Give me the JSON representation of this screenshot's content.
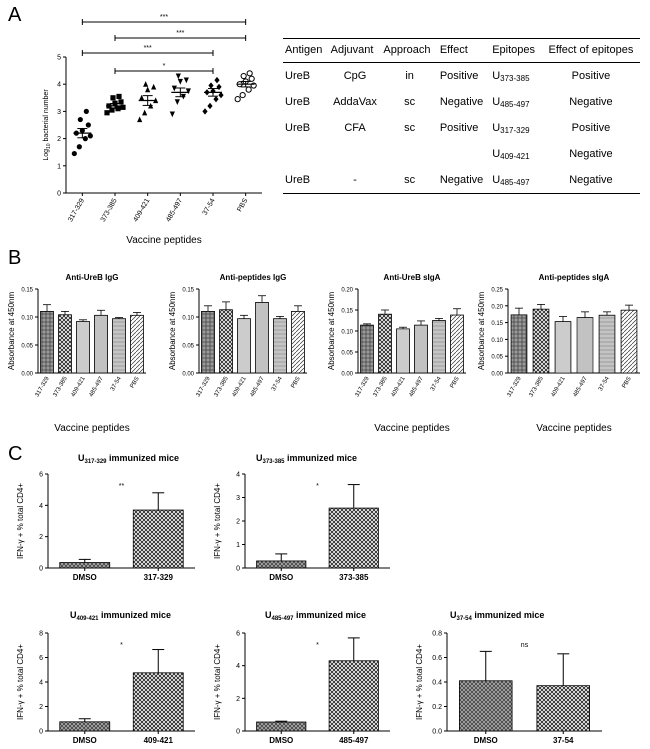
{
  "panel_labels": {
    "a": "A",
    "b": "B",
    "c": "C"
  },
  "table": {
    "headers": [
      "Antigen",
      "Adjuvant",
      "Approach",
      "Effect",
      "Epitopes",
      "Effect of epitopes"
    ],
    "rows": [
      {
        "antigen": "UreB",
        "adjuvant": "CpG",
        "approach": "in",
        "effect": "Positive",
        "epitope_prefix": "U",
        "epitope_sub": "373-385",
        "epitope_effect": "Positive"
      },
      {
        "antigen": "UreB",
        "adjuvant": "AddaVax",
        "approach": "sc",
        "effect": "Negative",
        "epitope_prefix": "U",
        "epitope_sub": "485-497",
        "epitope_effect": "Negative"
      },
      {
        "antigen": "UreB",
        "adjuvant": "CFA",
        "approach": "sc",
        "effect": "Positive",
        "epitope_prefix": "U",
        "epitope_sub": "317-329",
        "epitope_effect": "Positive"
      },
      {
        "antigen": "",
        "adjuvant": "",
        "approach": "",
        "effect": "",
        "epitope_prefix": "U",
        "epitope_sub": "409-421",
        "epitope_effect": "Negative"
      },
      {
        "antigen": "UreB",
        "adjuvant": "-",
        "approach": "sc",
        "effect": "Negative",
        "epitope_prefix": "U",
        "epitope_sub": "485-497",
        "epitope_effect": "Negative"
      }
    ]
  },
  "chart_data": [
    {
      "id": "A",
      "type": "scatter",
      "title": "",
      "xlabel": "Vaccine peptides",
      "ylabel_main": "Log",
      "ylabel_sub": "10",
      "ylabel_rest": " bacterial number",
      "ylim": [
        0,
        5
      ],
      "yticks": [
        "0",
        "1",
        "2",
        "3",
        "4",
        "5"
      ],
      "categories": [
        "317-329",
        "373-385",
        "409-421",
        "485-497",
        "37-54",
        "PBS"
      ],
      "markers": [
        "circle",
        "square",
        "triangle",
        "triangle-down",
        "diamond",
        "circle-open"
      ],
      "groups": [
        {
          "points": [
            1.45,
            1.7,
            2.0,
            2.1,
            2.2,
            2.3,
            2.5,
            2.7,
            3.0
          ],
          "mean": 2.2,
          "sem": 0.17
        },
        {
          "points": [
            2.95,
            3.05,
            3.1,
            3.15,
            3.2,
            3.3,
            3.35,
            3.5,
            3.55
          ],
          "mean": 3.2,
          "sem": 0.09
        },
        {
          "points": [
            2.7,
            2.95,
            3.2,
            3.4,
            3.5,
            3.8,
            3.9,
            4.0
          ],
          "mean": 3.4,
          "sem": 0.18
        },
        {
          "points": [
            2.9,
            3.35,
            3.55,
            3.75,
            3.85,
            4.1,
            4.15,
            4.3
          ],
          "mean": 3.7,
          "sem": 0.16
        },
        {
          "points": [
            3.0,
            3.2,
            3.45,
            3.6,
            3.7,
            3.75,
            3.9,
            3.95,
            4.15
          ],
          "mean": 3.7,
          "sem": 0.14
        },
        {
          "points": [
            3.45,
            3.6,
            3.8,
            3.95,
            4.0,
            4.1,
            4.2,
            4.3,
            4.4
          ],
          "mean": 4.0,
          "sem": 0.1
        }
      ],
      "significance": [
        {
          "from": "317-329",
          "to": "PBS",
          "label": "***"
        },
        {
          "from": "373-385",
          "to": "PBS",
          "label": "***"
        },
        {
          "from": "317-329",
          "to": "37-54",
          "label": "***"
        },
        {
          "from": "373-385",
          "to": "37-54",
          "label": "*"
        }
      ]
    },
    {
      "id": "B1",
      "type": "bar",
      "title": "Anti-UreB IgG",
      "xlabel": "Vaccine peptides",
      "ylabel": "Absorbance at 450nm",
      "categories": [
        "317-329",
        "373-385",
        "409-421",
        "485-497",
        "37-54",
        "PBS"
      ],
      "values": [
        0.11,
        0.104,
        0.092,
        0.103,
        0.097,
        0.103
      ],
      "errors": [
        0.012,
        0.006,
        0.003,
        0.009,
        0.002,
        0.005
      ],
      "ylim": [
        0,
        0.15
      ],
      "yticks": [
        "0.00",
        "0.05",
        "0.10",
        "0.15"
      ]
    },
    {
      "id": "B2",
      "type": "bar",
      "title": "Anti-peptides IgG",
      "xlabel": "",
      "ylabel": "Absorbance at 450nm",
      "categories": [
        "317-329",
        "373-385",
        "409-421",
        "485-497",
        "37-54",
        "PBS"
      ],
      "values": [
        0.11,
        0.113,
        0.097,
        0.126,
        0.097,
        0.11
      ],
      "errors": [
        0.01,
        0.014,
        0.006,
        0.012,
        0.004,
        0.01
      ],
      "ylim": [
        0,
        0.15
      ],
      "yticks": [
        "0.00",
        "0.05",
        "0.10",
        "0.15"
      ]
    },
    {
      "id": "B3",
      "type": "bar",
      "title": "Anti-UreB sIgA",
      "xlabel": "Vaccine peptides",
      "ylabel": "Absorbance at 450nm",
      "categories": [
        "317-329",
        "373-385",
        "409-421",
        "485-497",
        "37-54",
        "PBS"
      ],
      "values": [
        0.114,
        0.14,
        0.105,
        0.114,
        0.125,
        0.138
      ],
      "errors": [
        0.003,
        0.01,
        0.004,
        0.01,
        0.005,
        0.015
      ],
      "ylim": [
        0,
        0.2
      ],
      "yticks": [
        "0.00",
        "0.05",
        "0.10",
        "0.15",
        "0.20"
      ]
    },
    {
      "id": "B4",
      "type": "bar",
      "title": "Anti-peptides sIgA",
      "xlabel": "Vaccine peptides",
      "ylabel": "Absorbance at 450nm",
      "categories": [
        "317-329",
        "373-385",
        "409-421",
        "485-497",
        "37-54",
        "PBS"
      ],
      "values": [
        0.173,
        0.19,
        0.153,
        0.165,
        0.172,
        0.187
      ],
      "errors": [
        0.02,
        0.014,
        0.015,
        0.017,
        0.01,
        0.015
      ],
      "ylim": [
        0,
        0.25
      ],
      "yticks": [
        "0.00",
        "0.05",
        "0.10",
        "0.15",
        "0.20",
        "0.25"
      ]
    },
    {
      "id": "C1",
      "type": "bar",
      "title_prefix": "U",
      "title_sub": "317-329",
      "title_rest": " immunized mice",
      "ylabel": "IFN-γ + % total CD4+",
      "categories": [
        "DMSO",
        "317-329"
      ],
      "values": [
        0.35,
        3.7
      ],
      "errors": [
        0.2,
        1.1
      ],
      "ylim": [
        0,
        6
      ],
      "yticks": [
        "0",
        "2",
        "4",
        "6"
      ],
      "significance": "**"
    },
    {
      "id": "C2",
      "type": "bar",
      "title_prefix": "U",
      "title_sub": "373-385",
      "title_rest": " immunized mice",
      "ylabel": "IFN-γ + % total CD4+",
      "categories": [
        "DMSO",
        "373-385"
      ],
      "values": [
        0.3,
        2.55
      ],
      "errors": [
        0.3,
        1.0
      ],
      "ylim": [
        0,
        4
      ],
      "yticks": [
        "0",
        "1",
        "2",
        "3",
        "4"
      ],
      "significance": "*"
    },
    {
      "id": "C3",
      "type": "bar",
      "title_prefix": "U",
      "title_sub": "409-421",
      "title_rest": " immunized mice",
      "ylabel": "IFN-γ + % total CD4+",
      "categories": [
        "DMSO",
        "409-421"
      ],
      "values": [
        0.75,
        4.75
      ],
      "errors": [
        0.25,
        1.9
      ],
      "ylim": [
        0,
        8
      ],
      "yticks": [
        "0",
        "2",
        "4",
        "6",
        "8"
      ],
      "significance": "*"
    },
    {
      "id": "C4",
      "type": "bar",
      "title_prefix": "U",
      "title_sub": "485-497",
      "title_rest": " immunized mice",
      "ylabel": "IFN-γ + % total CD4+",
      "categories": [
        "DMSO",
        "485-497"
      ],
      "values": [
        0.55,
        4.3
      ],
      "errors": [
        0.05,
        1.4
      ],
      "ylim": [
        0,
        6
      ],
      "yticks": [
        "0",
        "2",
        "4",
        "6"
      ],
      "significance": "*"
    },
    {
      "id": "C5",
      "type": "bar",
      "title_prefix": "U",
      "title_sub": "37-54",
      "title_rest": " immunized mice",
      "ylabel": "IFN-γ + % total CD4+",
      "categories": [
        "DMSO",
        "37-54"
      ],
      "values": [
        0.41,
        0.37
      ],
      "errors": [
        0.24,
        0.26
      ],
      "ylim": [
        0,
        0.8
      ],
      "yticks": [
        "0.0",
        "0.2",
        "0.4",
        "0.6",
        "0.8"
      ],
      "significance": "ns"
    }
  ]
}
